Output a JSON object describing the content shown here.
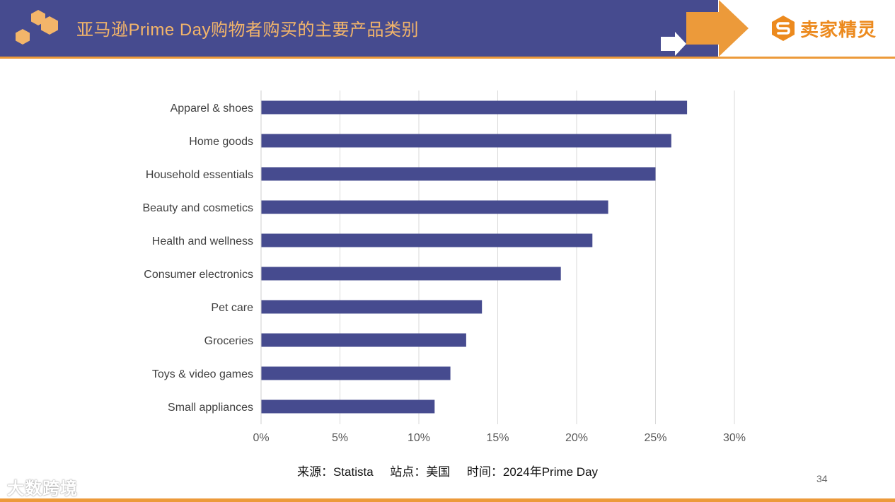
{
  "header": {
    "title": "亚马逊Prime Day购物者购买的主要产品类别",
    "brand": "卖家精灵"
  },
  "chart_data": {
    "type": "bar",
    "orientation": "horizontal",
    "categories": [
      "Apparel & shoes",
      "Home goods",
      "Household essentials",
      "Beauty and cosmetics",
      "Health and wellness",
      "Consumer electronics",
      "Pet care",
      "Groceries",
      "Toys & video games",
      "Small appliances"
    ],
    "values": [
      27,
      26,
      25,
      22,
      21,
      19,
      14,
      13,
      12,
      11
    ],
    "xlim": [
      0,
      30
    ],
    "xticks": [
      0,
      5,
      10,
      15,
      20,
      25,
      30
    ],
    "xtick_labels": [
      "0%",
      "5%",
      "10%",
      "15%",
      "20%",
      "25%",
      "30%"
    ],
    "bar_color": "#464b8f",
    "grid": true
  },
  "footer": {
    "source": "来源：Statista     站点：美国     时间：2024年Prime Day",
    "page_number": "34",
    "watermark": "大数跨境"
  }
}
